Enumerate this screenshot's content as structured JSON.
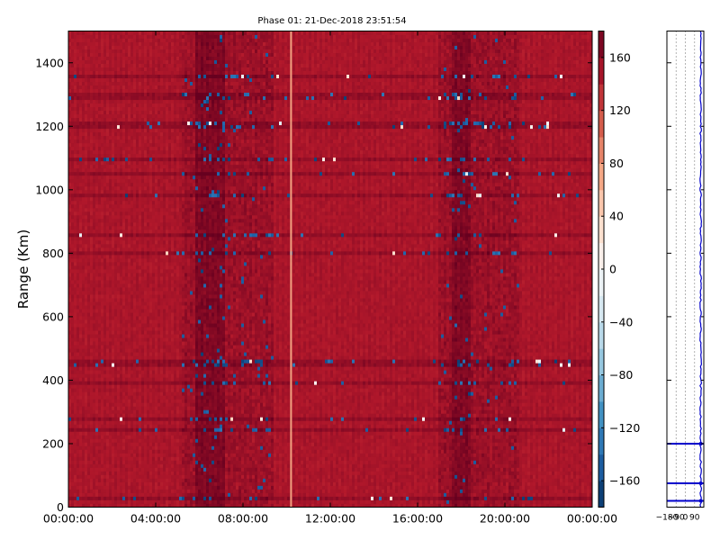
{
  "chart_data": [
    {
      "type": "heatmap",
      "title": "Phase 01: 21-Dec-2018 23:51:54",
      "xlabel": "",
      "ylabel": "Range (Km)",
      "x_tick_labels": [
        "00:00:00",
        "04:00:00",
        "08:00:00",
        "12:00:00",
        "16:00:00",
        "20:00:00",
        "00:00:00"
      ],
      "x_range": [
        "00:00:00",
        "24:00:00"
      ],
      "y_ticks": [
        0,
        200,
        400,
        600,
        800,
        1000,
        1200,
        1400
      ],
      "ylim": [
        0,
        1500
      ],
      "colorbar": {
        "ticks": [
          160,
          120,
          80,
          40,
          0,
          -40,
          -80,
          -120,
          -160
        ],
        "range": [
          -180,
          180
        ],
        "colormap": "RdBu_r"
      },
      "dominant_value_deg": 150,
      "dark_bands_hours": [
        [
          5.8,
          7.2
        ],
        [
          17.6,
          18.4
        ]
      ],
      "highlight_column_hour": 10.2,
      "noisy_ranges_km": [
        30,
        240,
        280,
        395,
        455,
        805,
        855,
        980,
        1055,
        1095,
        1205,
        1295,
        1360
      ]
    },
    {
      "type": "line",
      "title": "",
      "x_tick_labels": [
        "−180",
        "−90",
        "0",
        "90"
      ],
      "xlim": [
        -180,
        180
      ],
      "ylim": [
        0,
        1500
      ],
      "line_color": "#0000cc",
      "profile_mean_deg": 150,
      "marker_ranges_km": [
        20,
        75,
        200
      ]
    }
  ]
}
